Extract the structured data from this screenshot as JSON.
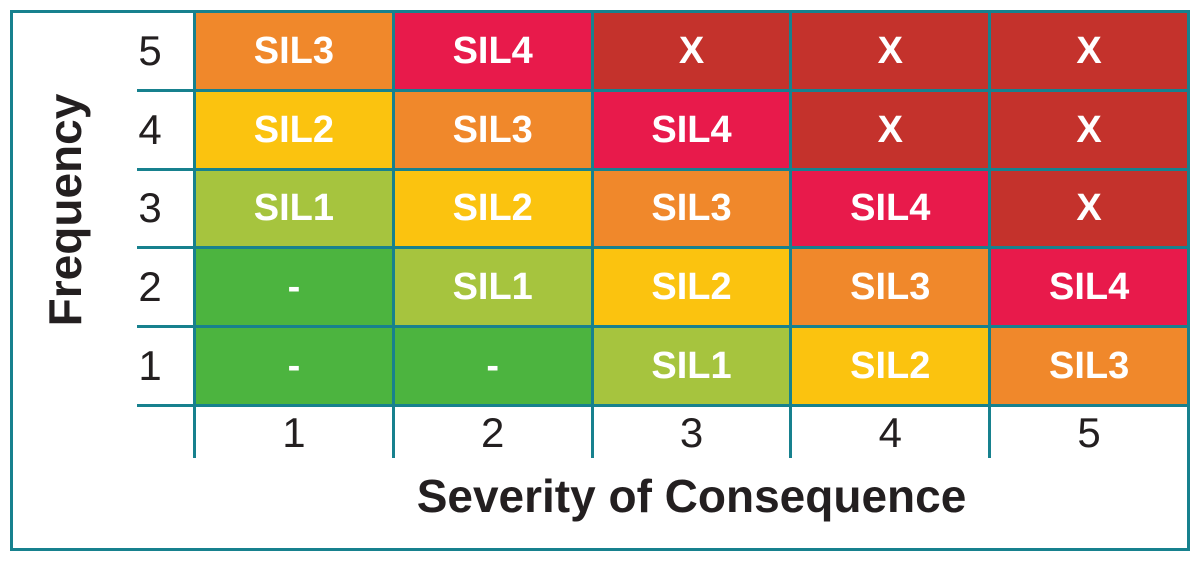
{
  "x_axis": {
    "title": "Severity of Consequence",
    "ticks": [
      "1",
      "2",
      "3",
      "4",
      "5"
    ]
  },
  "y_axis": {
    "title": "Frequency",
    "ticks": [
      "5",
      "4",
      "3",
      "2",
      "1"
    ]
  },
  "colors": {
    "grid": "#17818E",
    "axis_text": "#231F20",
    "cell_text": "#FFFFFF",
    "level_none": "#4CB43F",
    "level_sil1": "#A6C43E",
    "level_sil2": "#FBC30F",
    "level_sil3": "#F0882B",
    "level_sil4": "#E81A4B",
    "level_x": "#C4322C"
  },
  "chart_data": {
    "type": "heatmap",
    "xlabel": "Severity of Consequence",
    "ylabel": "Frequency",
    "x": [
      1,
      2,
      3,
      4,
      5
    ],
    "y": [
      5,
      4,
      3,
      2,
      1
    ],
    "legend_position": "none",
    "grid": true,
    "rows": [
      {
        "frequency": "5",
        "cells": [
          {
            "label": "SIL3",
            "level": "sil3"
          },
          {
            "label": "SIL4",
            "level": "sil4"
          },
          {
            "label": "X",
            "level": "x"
          },
          {
            "label": "X",
            "level": "x"
          },
          {
            "label": "X",
            "level": "x"
          }
        ]
      },
      {
        "frequency": "4",
        "cells": [
          {
            "label": "SIL2",
            "level": "sil2"
          },
          {
            "label": "SIL3",
            "level": "sil3"
          },
          {
            "label": "SIL4",
            "level": "sil4"
          },
          {
            "label": "X",
            "level": "x"
          },
          {
            "label": "X",
            "level": "x"
          }
        ]
      },
      {
        "frequency": "3",
        "cells": [
          {
            "label": "SIL1",
            "level": "sil1"
          },
          {
            "label": "SIL2",
            "level": "sil2"
          },
          {
            "label": "SIL3",
            "level": "sil3"
          },
          {
            "label": "SIL4",
            "level": "sil4"
          },
          {
            "label": "X",
            "level": "x"
          }
        ]
      },
      {
        "frequency": "2",
        "cells": [
          {
            "label": "-",
            "level": "none"
          },
          {
            "label": "SIL1",
            "level": "sil1"
          },
          {
            "label": "SIL2",
            "level": "sil2"
          },
          {
            "label": "SIL3",
            "level": "sil3"
          },
          {
            "label": "SIL4",
            "level": "sil4"
          }
        ]
      },
      {
        "frequency": "1",
        "cells": [
          {
            "label": "-",
            "level": "none"
          },
          {
            "label": "-",
            "level": "none"
          },
          {
            "label": "SIL1",
            "level": "sil1"
          },
          {
            "label": "SIL2",
            "level": "sil2"
          },
          {
            "label": "SIL3",
            "level": "sil3"
          }
        ]
      }
    ]
  }
}
